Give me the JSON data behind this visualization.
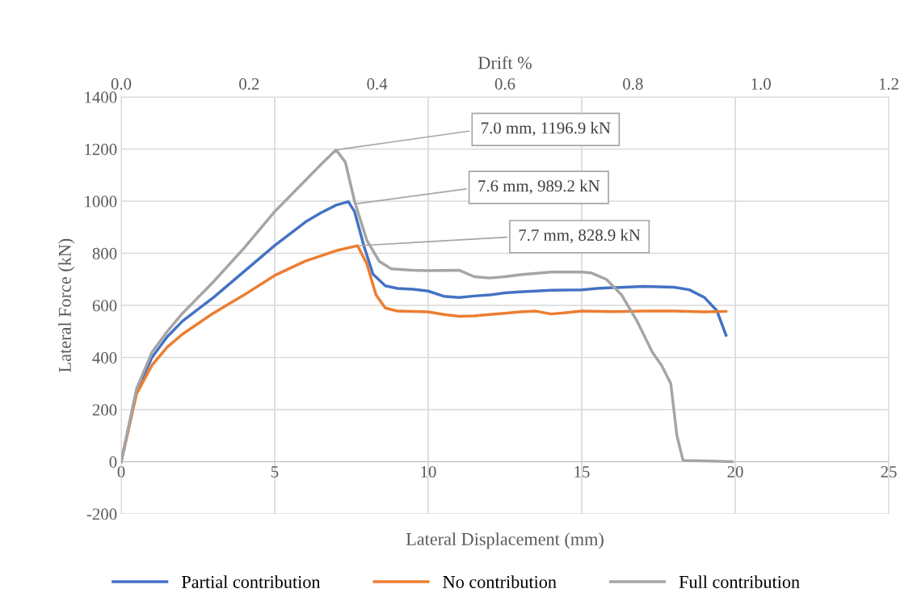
{
  "chart_data": {
    "type": "line",
    "xlabel": "Lateral Displacement (mm)",
    "ylabel": "Lateral Force (kN)",
    "x2label": "Drift %",
    "xlim": [
      0,
      25
    ],
    "xticks": [
      0,
      5,
      10,
      15,
      20,
      25
    ],
    "ylim": [
      -200,
      1400
    ],
    "yticks": [
      {
        "value": -200,
        "label": "-200"
      },
      0,
      200,
      400,
      600,
      800,
      1000,
      1200,
      1400
    ],
    "x2lim": [
      0,
      1.2
    ],
    "x2ticks": [
      {
        "value": 0,
        "label": "0.0"
      },
      0.2,
      0.4,
      0.6,
      0.8,
      {
        "value": 1,
        "label": "1.0"
      },
      1.2
    ],
    "grid": true,
    "legend": "bottom",
    "marker": "none",
    "line_style": "solid",
    "series": [
      {
        "name": "Partial contribution",
        "color": "#4472c4",
        "x": [
          0,
          0.5,
          1,
          1.5,
          2,
          3,
          4,
          5,
          6,
          6.5,
          7,
          7.4,
          7.6,
          7.9,
          8.2,
          8.6,
          9,
          9.5,
          10,
          10.5,
          11,
          11.5,
          12,
          12.5,
          13,
          14,
          15,
          15.5,
          16,
          17,
          18,
          18.5,
          19,
          19.4,
          19.7
        ],
        "values": [
          0,
          270,
          400,
          480,
          540,
          630,
          730,
          830,
          920,
          955,
          985,
          998,
          960,
          830,
          720,
          675,
          665,
          662,
          655,
          635,
          630,
          636,
          640,
          648,
          652,
          658,
          660,
          665,
          668,
          673,
          670,
          660,
          630,
          580,
          485
        ]
      },
      {
        "name": "No contribution",
        "color": "#ed7d31",
        "x": [
          0,
          0.5,
          1,
          1.5,
          2,
          3,
          4,
          5,
          6,
          7,
          7.7,
          8,
          8.3,
          8.6,
          9,
          9.5,
          10,
          10.5,
          11,
          11.5,
          12,
          12.5,
          13,
          13.5,
          14,
          14.5,
          15,
          16,
          17,
          18,
          19,
          19.7
        ],
        "values": [
          0,
          260,
          370,
          440,
          490,
          570,
          640,
          715,
          770,
          810,
          828.9,
          760,
          640,
          590,
          578,
          577,
          575,
          565,
          558,
          560,
          565,
          570,
          575,
          578,
          567,
          572,
          578,
          576,
          578,
          578,
          575,
          577
        ]
      },
      {
        "name": "Full contribution",
        "color": "#a5a5a5",
        "x": [
          0,
          0.5,
          1,
          1.5,
          2,
          3,
          4,
          5,
          6,
          6.5,
          7,
          7.3,
          7.6,
          8,
          8.4,
          8.8,
          9.5,
          10,
          11,
          11.5,
          12,
          12.5,
          13,
          14,
          15,
          15.3,
          15.8,
          16.3,
          16.8,
          17.3,
          17.6,
          17.9,
          18.1,
          18.3,
          19,
          19.9
        ],
        "values": [
          0,
          280,
          420,
          500,
          570,
          690,
          820,
          960,
          1080,
          1140,
          1196.9,
          1150,
          1000,
          850,
          770,
          740,
          735,
          733,
          735,
          710,
          705,
          710,
          718,
          728,
          728,
          725,
          700,
          640,
          540,
          420,
          370,
          300,
          100,
          5,
          3,
          0
        ]
      }
    ],
    "annotations": [
      {
        "text": "7.0 mm, 1196.9 kN",
        "x": 7.0,
        "y": 1196.9
      },
      {
        "text": "7.6 mm, 989.2 kN",
        "x": 7.6,
        "y": 989.2
      },
      {
        "text": "7.7 mm, 828.9 kN",
        "x": 7.7,
        "y": 828.9
      }
    ]
  }
}
